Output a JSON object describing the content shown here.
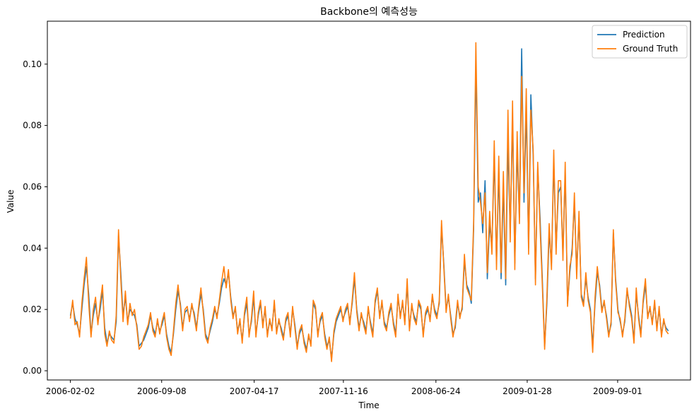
{
  "chart_data": {
    "type": "line",
    "title": "Backbone의 예측성능",
    "xlabel": "Time",
    "ylabel": "Value",
    "x_range": [
      "2006-02-02",
      "2009-12-31"
    ],
    "xlim": [
      "2005-12-09",
      "2010-02-22"
    ],
    "ylim": [
      -0.003,
      0.114
    ],
    "x_ticks": [
      "2006-02-02",
      "2006-09-08",
      "2007-04-17",
      "2007-11-16",
      "2008-06-24",
      "2009-01-28",
      "2009-09-01"
    ],
    "y_ticks": [
      0.0,
      0.02,
      0.04,
      0.06,
      0.08,
      0.1
    ],
    "y_tick_labels": [
      "0.00",
      "0.02",
      "0.04",
      "0.06",
      "0.08",
      "0.10"
    ],
    "grid": false,
    "legend": "top-right",
    "series": [
      {
        "name": "Prediction",
        "color": "#1f77b4",
        "values": [
          0.018,
          0.022,
          0.017,
          0.015,
          0.012,
          0.02,
          0.028,
          0.034,
          0.025,
          0.012,
          0.018,
          0.022,
          0.016,
          0.02,
          0.026,
          0.014,
          0.009,
          0.012,
          0.011,
          0.01,
          0.016,
          0.044,
          0.032,
          0.018,
          0.024,
          0.016,
          0.02,
          0.019,
          0.018,
          0.015,
          0.008,
          0.009,
          0.01,
          0.012,
          0.014,
          0.018,
          0.014,
          0.012,
          0.016,
          0.013,
          0.015,
          0.018,
          0.012,
          0.008,
          0.006,
          0.012,
          0.02,
          0.026,
          0.022,
          0.014,
          0.019,
          0.02,
          0.017,
          0.021,
          0.019,
          0.014,
          0.02,
          0.025,
          0.02,
          0.012,
          0.01,
          0.013,
          0.016,
          0.02,
          0.018,
          0.022,
          0.027,
          0.03,
          0.028,
          0.032,
          0.024,
          0.018,
          0.02,
          0.013,
          0.016,
          0.01,
          0.018,
          0.022,
          0.012,
          0.016,
          0.024,
          0.012,
          0.018,
          0.022,
          0.015,
          0.02,
          0.012,
          0.016,
          0.014,
          0.022,
          0.013,
          0.016,
          0.014,
          0.011,
          0.016,
          0.018,
          0.012,
          0.02,
          0.015,
          0.008,
          0.012,
          0.014,
          0.01,
          0.007,
          0.011,
          0.009,
          0.022,
          0.02,
          0.012,
          0.016,
          0.018,
          0.012,
          0.008,
          0.01,
          0.004,
          0.012,
          0.016,
          0.018,
          0.02,
          0.017,
          0.019,
          0.021,
          0.016,
          0.022,
          0.03,
          0.02,
          0.014,
          0.018,
          0.016,
          0.013,
          0.02,
          0.016,
          0.012,
          0.022,
          0.026,
          0.018,
          0.022,
          0.016,
          0.014,
          0.018,
          0.021,
          0.016,
          0.012,
          0.024,
          0.018,
          0.022,
          0.016,
          0.028,
          0.014,
          0.021,
          0.018,
          0.016,
          0.022,
          0.02,
          0.012,
          0.018,
          0.02,
          0.017,
          0.024,
          0.02,
          0.018,
          0.022,
          0.047,
          0.035,
          0.02,
          0.024,
          0.018,
          0.012,
          0.014,
          0.022,
          0.018,
          0.02,
          0.036,
          0.028,
          0.026,
          0.022,
          0.046,
          0.1,
          0.055,
          0.058,
          0.045,
          0.062,
          0.03,
          0.048,
          0.04,
          0.07,
          0.035,
          0.065,
          0.03,
          0.06,
          0.028,
          0.075,
          0.045,
          0.082,
          0.035,
          0.072,
          0.05,
          0.105,
          0.055,
          0.085,
          0.04,
          0.09,
          0.07,
          0.03,
          0.066,
          0.05,
          0.03,
          0.008,
          0.022,
          0.045,
          0.035,
          0.068,
          0.04,
          0.058,
          0.06,
          0.038,
          0.065,
          0.022,
          0.032,
          0.04,
          0.055,
          0.032,
          0.05,
          0.025,
          0.022,
          0.03,
          0.024,
          0.02,
          0.008,
          0.022,
          0.032,
          0.028,
          0.02,
          0.022,
          0.018,
          0.012,
          0.015,
          0.045,
          0.03,
          0.02,
          0.016,
          0.012,
          0.016,
          0.026,
          0.022,
          0.018,
          0.01,
          0.025,
          0.018,
          0.012,
          0.022,
          0.028,
          0.018,
          0.02,
          0.016,
          0.022,
          0.014,
          0.02,
          0.012,
          0.016,
          0.014,
          0.013
        ]
      },
      {
        "name": "Ground Truth",
        "color": "#ff7f0e",
        "values": [
          0.017,
          0.023,
          0.015,
          0.016,
          0.011,
          0.022,
          0.03,
          0.037,
          0.022,
          0.011,
          0.02,
          0.024,
          0.015,
          0.022,
          0.028,
          0.012,
          0.008,
          0.013,
          0.01,
          0.009,
          0.018,
          0.046,
          0.03,
          0.016,
          0.026,
          0.015,
          0.022,
          0.018,
          0.02,
          0.014,
          0.007,
          0.008,
          0.011,
          0.013,
          0.015,
          0.019,
          0.013,
          0.011,
          0.017,
          0.012,
          0.016,
          0.019,
          0.011,
          0.007,
          0.005,
          0.013,
          0.022,
          0.028,
          0.021,
          0.013,
          0.02,
          0.021,
          0.016,
          0.022,
          0.018,
          0.013,
          0.021,
          0.027,
          0.019,
          0.011,
          0.009,
          0.014,
          0.017,
          0.021,
          0.017,
          0.023,
          0.029,
          0.034,
          0.027,
          0.033,
          0.023,
          0.017,
          0.021,
          0.012,
          0.017,
          0.009,
          0.019,
          0.024,
          0.011,
          0.017,
          0.026,
          0.011,
          0.019,
          0.023,
          0.014,
          0.021,
          0.011,
          0.017,
          0.013,
          0.023,
          0.012,
          0.017,
          0.013,
          0.01,
          0.017,
          0.019,
          0.011,
          0.021,
          0.014,
          0.007,
          0.013,
          0.015,
          0.009,
          0.006,
          0.012,
          0.008,
          0.023,
          0.021,
          0.011,
          0.017,
          0.019,
          0.011,
          0.007,
          0.011,
          0.003,
          0.013,
          0.017,
          0.019,
          0.021,
          0.016,
          0.02,
          0.022,
          0.015,
          0.023,
          0.032,
          0.019,
          0.013,
          0.019,
          0.015,
          0.012,
          0.021,
          0.015,
          0.011,
          0.023,
          0.027,
          0.017,
          0.023,
          0.015,
          0.013,
          0.019,
          0.022,
          0.015,
          0.011,
          0.025,
          0.017,
          0.023,
          0.015,
          0.03,
          0.013,
          0.022,
          0.017,
          0.015,
          0.023,
          0.021,
          0.011,
          0.019,
          0.021,
          0.016,
          0.025,
          0.019,
          0.017,
          0.023,
          0.049,
          0.034,
          0.019,
          0.025,
          0.017,
          0.011,
          0.015,
          0.023,
          0.017,
          0.021,
          0.038,
          0.027,
          0.025,
          0.023,
          0.048,
          0.107,
          0.06,
          0.055,
          0.048,
          0.058,
          0.032,
          0.052,
          0.038,
          0.075,
          0.033,
          0.07,
          0.032,
          0.065,
          0.03,
          0.085,
          0.042,
          0.088,
          0.033,
          0.078,
          0.048,
          0.096,
          0.058,
          0.092,
          0.038,
          0.085,
          0.072,
          0.028,
          0.068,
          0.047,
          0.028,
          0.007,
          0.024,
          0.048,
          0.033,
          0.072,
          0.038,
          0.062,
          0.062,
          0.036,
          0.068,
          0.021,
          0.034,
          0.038,
          0.058,
          0.03,
          0.052,
          0.024,
          0.021,
          0.032,
          0.023,
          0.019,
          0.006,
          0.024,
          0.034,
          0.027,
          0.019,
          0.023,
          0.017,
          0.011,
          0.016,
          0.046,
          0.029,
          0.019,
          0.017,
          0.011,
          0.017,
          0.027,
          0.021,
          0.017,
          0.009,
          0.027,
          0.017,
          0.011,
          0.023,
          0.03,
          0.017,
          0.021,
          0.015,
          0.023,
          0.013,
          0.021,
          0.011,
          0.017,
          0.013,
          0.012
        ]
      }
    ]
  }
}
